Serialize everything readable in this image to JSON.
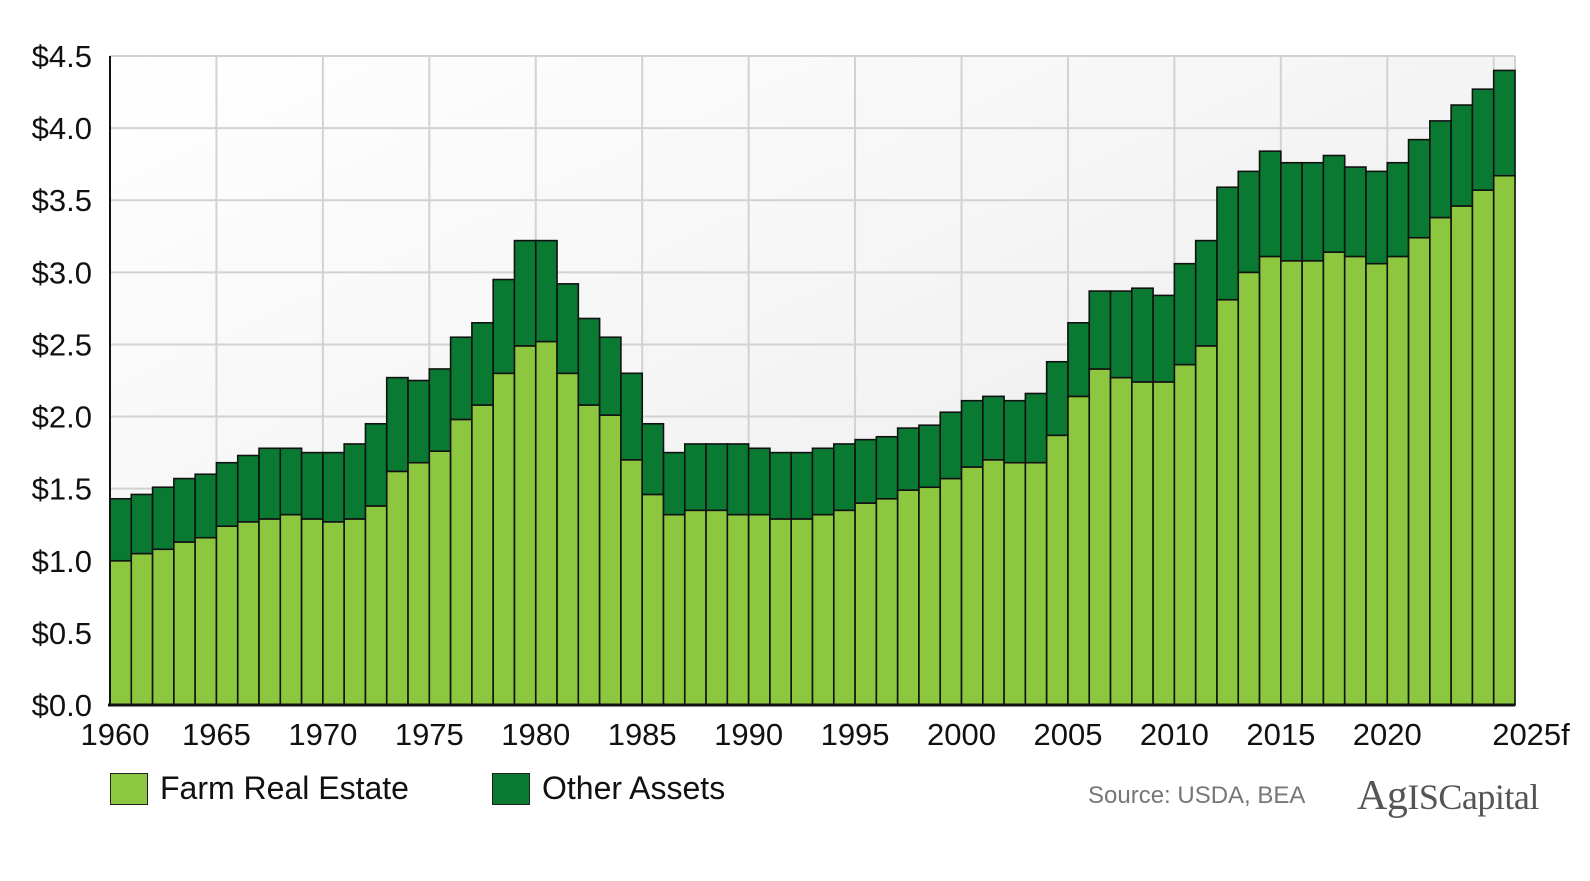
{
  "chart_data": {
    "type": "bar",
    "stacked": true,
    "title": "",
    "xlabel": "",
    "ylabel": "",
    "ylim": [
      0,
      4.5
    ],
    "y_ticks": [
      0,
      0.5,
      1.0,
      1.5,
      2.0,
      2.5,
      3.0,
      3.5,
      4.0,
      4.5
    ],
    "y_tick_labels": [
      "$0.0",
      "$0.5",
      "$1.0",
      "$1.5",
      "$2.0",
      "$2.5",
      "$3.0",
      "$3.5",
      "$4.0",
      "$4.5"
    ],
    "x_tick_labels": [
      "1960",
      "1965",
      "1970",
      "1975",
      "1980",
      "1985",
      "1990",
      "1995",
      "2000",
      "2005",
      "2010",
      "2015",
      "2020",
      "2025f"
    ],
    "grid": true,
    "legend_position": "bottom-left",
    "categories": [
      "1960",
      "1961",
      "1962",
      "1963",
      "1964",
      "1965",
      "1966",
      "1967",
      "1968",
      "1969",
      "1970",
      "1971",
      "1972",
      "1973",
      "1974",
      "1975",
      "1976",
      "1977",
      "1978",
      "1979",
      "1980",
      "1981",
      "1982",
      "1983",
      "1984",
      "1985",
      "1986",
      "1987",
      "1988",
      "1989",
      "1990",
      "1991",
      "1992",
      "1993",
      "1994",
      "1995",
      "1996",
      "1997",
      "1998",
      "1999",
      "2000",
      "2001",
      "2002",
      "2003",
      "2004",
      "2005",
      "2006",
      "2007",
      "2008",
      "2009",
      "2010",
      "2011",
      "2012",
      "2013",
      "2014",
      "2015",
      "2016",
      "2017",
      "2018",
      "2019",
      "2020",
      "2021",
      "2022",
      "2023",
      "2024",
      "2025f"
    ],
    "series": [
      {
        "name": "Farm Real Estate",
        "color": "#8dc63f",
        "values": [
          1.0,
          1.05,
          1.08,
          1.13,
          1.16,
          1.24,
          1.27,
          1.29,
          1.32,
          1.29,
          1.27,
          1.29,
          1.38,
          1.62,
          1.68,
          1.76,
          1.98,
          2.08,
          2.3,
          2.49,
          2.52,
          2.3,
          2.08,
          2.01,
          1.7,
          1.46,
          1.32,
          1.35,
          1.35,
          1.32,
          1.32,
          1.29,
          1.29,
          1.32,
          1.35,
          1.4,
          1.43,
          1.49,
          1.51,
          1.57,
          1.65,
          1.7,
          1.68,
          1.68,
          1.87,
          2.14,
          2.33,
          2.27,
          2.24,
          2.24,
          2.36,
          2.49,
          2.81,
          3.0,
          3.11,
          3.08,
          3.08,
          3.14,
          3.11,
          3.06,
          3.11,
          3.24,
          3.38,
          3.46,
          3.57,
          3.67
        ]
      },
      {
        "name": "Other Assets",
        "color": "#0a7a33",
        "values": [
          0.43,
          0.41,
          0.43,
          0.44,
          0.44,
          0.44,
          0.46,
          0.49,
          0.46,
          0.46,
          0.48,
          0.52,
          0.57,
          0.65,
          0.57,
          0.57,
          0.57,
          0.57,
          0.65,
          0.73,
          0.7,
          0.62,
          0.6,
          0.54,
          0.6,
          0.49,
          0.43,
          0.46,
          0.46,
          0.49,
          0.46,
          0.46,
          0.46,
          0.46,
          0.46,
          0.44,
          0.43,
          0.43,
          0.43,
          0.46,
          0.46,
          0.44,
          0.43,
          0.48,
          0.51,
          0.51,
          0.54,
          0.6,
          0.65,
          0.6,
          0.7,
          0.73,
          0.78,
          0.7,
          0.73,
          0.68,
          0.68,
          0.67,
          0.62,
          0.64,
          0.65,
          0.68,
          0.67,
          0.7,
          0.7,
          0.73
        ]
      }
    ]
  },
  "legend": {
    "items": [
      {
        "label": "Farm Real Estate",
        "color": "#8dc63f"
      },
      {
        "label": "Other Assets",
        "color": "#0a7a33"
      }
    ]
  },
  "source_text": "Source: USDA, BEA",
  "logo": {
    "text_ag": "Ag",
    "text_is": "IS",
    "text_capital": " Capital"
  }
}
